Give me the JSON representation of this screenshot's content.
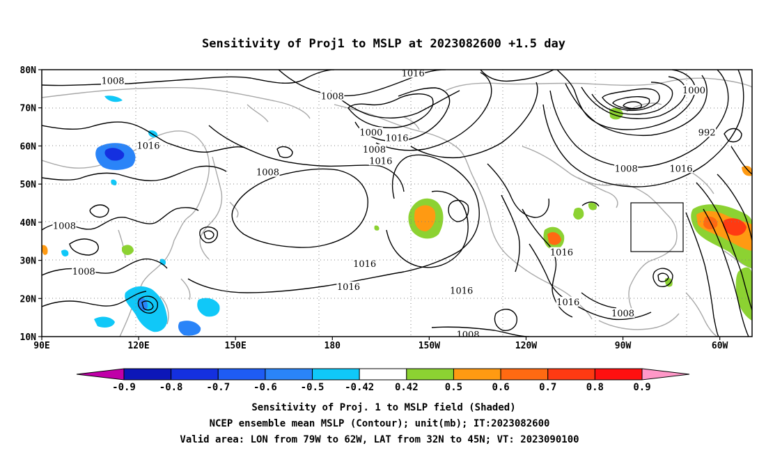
{
  "chart_data": {
    "type": "heatmap",
    "title": "Sensitivity of Proj1 to MSLP at 2023082600 +1.5 day",
    "x_ticks": [
      "90E",
      "120E",
      "150E",
      "180",
      "150W",
      "120W",
      "90W",
      "60W"
    ],
    "y_ticks": [
      "80N",
      "70N",
      "60N",
      "50N",
      "40N",
      "30N",
      "20N",
      "10N"
    ],
    "xlim": [
      "90E",
      "50W"
    ],
    "ylim": [
      "10N",
      "80N"
    ],
    "grid": true,
    "contour_variable": "MSLP",
    "contour_unit": "mb",
    "contour_labels": [
      {
        "value": "1016",
        "lon": -155,
        "lat": 79
      },
      {
        "value": "1008",
        "lon": 112,
        "lat": 77
      },
      {
        "value": "1008",
        "lon": -180,
        "lat": 73
      },
      {
        "value": "1000",
        "lon": -168,
        "lat": 63.5
      },
      {
        "value": "1008",
        "lon": -167,
        "lat": 59
      },
      {
        "value": "1016",
        "lon": -160,
        "lat": 62
      },
      {
        "value": "1016",
        "lon": 123,
        "lat": 60
      },
      {
        "value": "1016",
        "lon": -165,
        "lat": 56
      },
      {
        "value": "1008",
        "lon": 160,
        "lat": 53
      },
      {
        "value": "1000",
        "lon": -68,
        "lat": 74.5
      },
      {
        "value": "992",
        "lon": -64,
        "lat": 63.5
      },
      {
        "value": "1008",
        "lon": -89,
        "lat": 54
      },
      {
        "value": "1016",
        "lon": -72,
        "lat": 54
      },
      {
        "value": "1008",
        "lon": 97,
        "lat": 39
      },
      {
        "value": "1008",
        "lon": 103,
        "lat": 27
      },
      {
        "value": "1016",
        "lon": -170,
        "lat": 29
      },
      {
        "value": "1016",
        "lon": -175,
        "lat": 23
      },
      {
        "value": "1016",
        "lon": -140,
        "lat": 22
      },
      {
        "value": "1016",
        "lon": -109,
        "lat": 32
      },
      {
        "value": "1016",
        "lon": -107,
        "lat": 19
      },
      {
        "value": "1008",
        "lon": -90,
        "lat": 16
      },
      {
        "value": "1008",
        "lon": -138,
        "lat": 10.5
      }
    ],
    "sensitivity_regions": [
      {
        "sign": "negative",
        "lon_range": [
          107,
          117
        ],
        "lat_range": [
          55,
          61
        ],
        "level": "-0.6"
      },
      {
        "sign": "negative",
        "lon_range": [
          112,
          130
        ],
        "lat_range": [
          10,
          22
        ],
        "level": "-0.5"
      },
      {
        "sign": "negative",
        "lon_range": [
          133,
          146
        ],
        "lat_range": [
          10,
          20
        ],
        "level": "-0.5"
      },
      {
        "sign": "positive",
        "lon_range": [
          -150,
          -143
        ],
        "lat_range": [
          35,
          43
        ],
        "level": "0.6"
      },
      {
        "sign": "positive",
        "lon_range": [
          -104,
          -98
        ],
        "lat_range": [
          31,
          37
        ],
        "level": "0.7"
      },
      {
        "sign": "positive",
        "lon_range": [
          -58,
          -40
        ],
        "lat_range": [
          28,
          42
        ],
        "level": "0.7"
      },
      {
        "sign": "positive",
        "lon_range": [
          -78,
          -73
        ],
        "lat_range": [
          67,
          71
        ],
        "level": "0.5"
      }
    ],
    "valid_box": {
      "lon": [
        -79,
        -62
      ],
      "lat": [
        32,
        45
      ]
    }
  },
  "colorbar": {
    "labels": [
      "-0.9",
      "-0.8",
      "-0.7",
      "-0.6",
      "-0.5",
      "-0.42",
      "0.42",
      "0.5",
      "0.6",
      "0.7",
      "0.8",
      "0.9"
    ],
    "colors": [
      "#c000a8",
      "#0c16b8",
      "#1430e0",
      "#1e5cf4",
      "#2a84f8",
      "#10c8f8",
      "#ffffff",
      "#8cd232",
      "#ff9a12",
      "#ff6a12",
      "#ff3a12",
      "#ff1010",
      "#ff98c8"
    ]
  },
  "footer": {
    "line1": "Sensitivity of Proj. 1 to MSLP field (Shaded)",
    "line2": "NCEP ensemble mean MSLP (Contour); unit(mb); IT:2023082600",
    "line3": "Valid area: LON from 79W to 62W, LAT from 32N to 45N; VT: 2023090100"
  }
}
